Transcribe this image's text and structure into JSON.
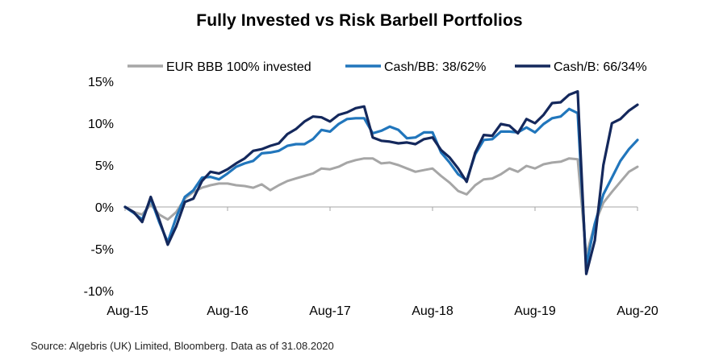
{
  "chart_data": {
    "type": "line",
    "title": "Fully Invested vs Risk Barbell Portfolios",
    "source": "Source: Algebris (UK) Limited, Bloomberg. Data as of 31.08.2020",
    "xlabel": "",
    "ylabel": "",
    "x_tick_labels": [
      "Aug-15",
      "Aug-16",
      "Aug-17",
      "Aug-18",
      "Aug-19",
      "Aug-20"
    ],
    "y_tick_labels": [
      "15%",
      "10%",
      "5%",
      "0%",
      "-5%",
      "-10%"
    ],
    "ylim": [
      -10,
      15
    ],
    "xlim": [
      0,
      60
    ],
    "x_unit": "months since Aug-15",
    "grid": false,
    "legend_position": "top",
    "series": [
      {
        "name": "EUR BBB 100% invested",
        "color": "#a6a6a6",
        "points": [
          [
            0,
            0
          ],
          [
            1,
            -0.6
          ],
          [
            2,
            -0.9
          ],
          [
            3,
            0.3
          ],
          [
            4,
            -0.9
          ],
          [
            5,
            -1.5
          ],
          [
            6,
            -0.6
          ],
          [
            7,
            1.0
          ],
          [
            8,
            1.8
          ],
          [
            9,
            2.3
          ],
          [
            10,
            2.6
          ],
          [
            11,
            2.8
          ],
          [
            12,
            2.8
          ],
          [
            13,
            2.6
          ],
          [
            14,
            2.5
          ],
          [
            15,
            2.3
          ],
          [
            16,
            2.7
          ],
          [
            17,
            2.0
          ],
          [
            18,
            2.6
          ],
          [
            19,
            3.1
          ],
          [
            20,
            3.4
          ],
          [
            21,
            3.7
          ],
          [
            22,
            4.0
          ],
          [
            23,
            4.6
          ],
          [
            24,
            4.5
          ],
          [
            25,
            4.8
          ],
          [
            26,
            5.3
          ],
          [
            27,
            5.6
          ],
          [
            28,
            5.8
          ],
          [
            29,
            5.8
          ],
          [
            30,
            5.2
          ],
          [
            31,
            5.3
          ],
          [
            32,
            5.0
          ],
          [
            33,
            4.6
          ],
          [
            34,
            4.2
          ],
          [
            35,
            4.4
          ],
          [
            36,
            4.6
          ],
          [
            37,
            3.7
          ],
          [
            38,
            2.9
          ],
          [
            39,
            1.9
          ],
          [
            40,
            1.5
          ],
          [
            41,
            2.6
          ],
          [
            42,
            3.3
          ],
          [
            43,
            3.4
          ],
          [
            44,
            3.9
          ],
          [
            45,
            4.6
          ],
          [
            46,
            4.2
          ],
          [
            47,
            4.9
          ],
          [
            48,
            4.6
          ],
          [
            49,
            5.1
          ],
          [
            50,
            5.3
          ],
          [
            51,
            5.4
          ],
          [
            52,
            5.8
          ],
          [
            53,
            5.7
          ],
          [
            54,
            -5.8
          ],
          [
            55,
            -2.0
          ],
          [
            56,
            0.5
          ],
          [
            57,
            1.8
          ],
          [
            58,
            3.0
          ],
          [
            59,
            4.2
          ],
          [
            60,
            4.8
          ]
        ]
      },
      {
        "name": "Cash/BB: 38/62%",
        "color": "#2176bc",
        "points": [
          [
            0,
            0
          ],
          [
            1,
            -0.7
          ],
          [
            2,
            -1.5
          ],
          [
            3,
            1.0
          ],
          [
            4,
            -1.8
          ],
          [
            5,
            -4.2
          ],
          [
            6,
            -1.2
          ],
          [
            7,
            1.2
          ],
          [
            8,
            2.0
          ],
          [
            9,
            3.5
          ],
          [
            10,
            3.6
          ],
          [
            11,
            3.3
          ],
          [
            12,
            4.0
          ],
          [
            13,
            4.8
          ],
          [
            14,
            5.2
          ],
          [
            15,
            5.5
          ],
          [
            16,
            6.4
          ],
          [
            17,
            6.5
          ],
          [
            18,
            6.7
          ],
          [
            19,
            7.3
          ],
          [
            20,
            7.5
          ],
          [
            21,
            7.5
          ],
          [
            22,
            8.1
          ],
          [
            23,
            9.2
          ],
          [
            24,
            9.0
          ],
          [
            25,
            9.9
          ],
          [
            26,
            10.5
          ],
          [
            27,
            10.6
          ],
          [
            28,
            10.6
          ],
          [
            29,
            8.8
          ],
          [
            30,
            9.1
          ],
          [
            31,
            9.6
          ],
          [
            32,
            9.2
          ],
          [
            33,
            8.2
          ],
          [
            34,
            8.3
          ],
          [
            35,
            8.9
          ],
          [
            36,
            8.9
          ],
          [
            37,
            6.5
          ],
          [
            38,
            5.3
          ],
          [
            39,
            3.9
          ],
          [
            40,
            3.2
          ],
          [
            41,
            6.3
          ],
          [
            42,
            8.0
          ],
          [
            43,
            8.1
          ],
          [
            44,
            9.0
          ],
          [
            45,
            9.0
          ],
          [
            46,
            8.9
          ],
          [
            47,
            9.5
          ],
          [
            48,
            8.9
          ],
          [
            49,
            9.9
          ],
          [
            50,
            10.6
          ],
          [
            51,
            10.8
          ],
          [
            52,
            11.7
          ],
          [
            53,
            11.2
          ],
          [
            54,
            -7.0
          ],
          [
            55,
            -2.0
          ],
          [
            56,
            1.5
          ],
          [
            57,
            3.5
          ],
          [
            58,
            5.5
          ],
          [
            59,
            6.9
          ],
          [
            60,
            8.0
          ]
        ]
      },
      {
        "name": "Cash/B: 66/34%",
        "color": "#14285c",
        "points": [
          [
            0,
            0
          ],
          [
            1,
            -0.6
          ],
          [
            2,
            -1.8
          ],
          [
            3,
            1.2
          ],
          [
            4,
            -1.5
          ],
          [
            5,
            -4.5
          ],
          [
            6,
            -2.3
          ],
          [
            7,
            0.6
          ],
          [
            8,
            1.0
          ],
          [
            9,
            3.1
          ],
          [
            10,
            4.2
          ],
          [
            11,
            4.0
          ],
          [
            12,
            4.5
          ],
          [
            13,
            5.2
          ],
          [
            14,
            5.8
          ],
          [
            15,
            6.7
          ],
          [
            16,
            6.9
          ],
          [
            17,
            7.3
          ],
          [
            18,
            7.6
          ],
          [
            19,
            8.7
          ],
          [
            20,
            9.3
          ],
          [
            21,
            10.2
          ],
          [
            22,
            10.8
          ],
          [
            23,
            10.7
          ],
          [
            24,
            10.2
          ],
          [
            25,
            11.0
          ],
          [
            26,
            11.3
          ],
          [
            27,
            11.8
          ],
          [
            28,
            12.0
          ],
          [
            29,
            8.3
          ],
          [
            30,
            7.9
          ],
          [
            31,
            7.8
          ],
          [
            32,
            7.6
          ],
          [
            33,
            7.7
          ],
          [
            34,
            7.5
          ],
          [
            35,
            8.1
          ],
          [
            36,
            8.3
          ],
          [
            37,
            6.8
          ],
          [
            38,
            5.9
          ],
          [
            39,
            4.6
          ],
          [
            40,
            3.0
          ],
          [
            41,
            6.5
          ],
          [
            42,
            8.6
          ],
          [
            43,
            8.5
          ],
          [
            44,
            9.9
          ],
          [
            45,
            9.7
          ],
          [
            46,
            8.8
          ],
          [
            47,
            10.5
          ],
          [
            48,
            10.0
          ],
          [
            49,
            11.0
          ],
          [
            50,
            12.4
          ],
          [
            51,
            12.5
          ],
          [
            52,
            13.4
          ],
          [
            53,
            13.8
          ],
          [
            54,
            -8.0
          ],
          [
            55,
            -4.0
          ],
          [
            56,
            5.0
          ],
          [
            57,
            10.0
          ],
          [
            58,
            10.5
          ],
          [
            59,
            11.5
          ],
          [
            60,
            12.2
          ]
        ]
      }
    ]
  }
}
